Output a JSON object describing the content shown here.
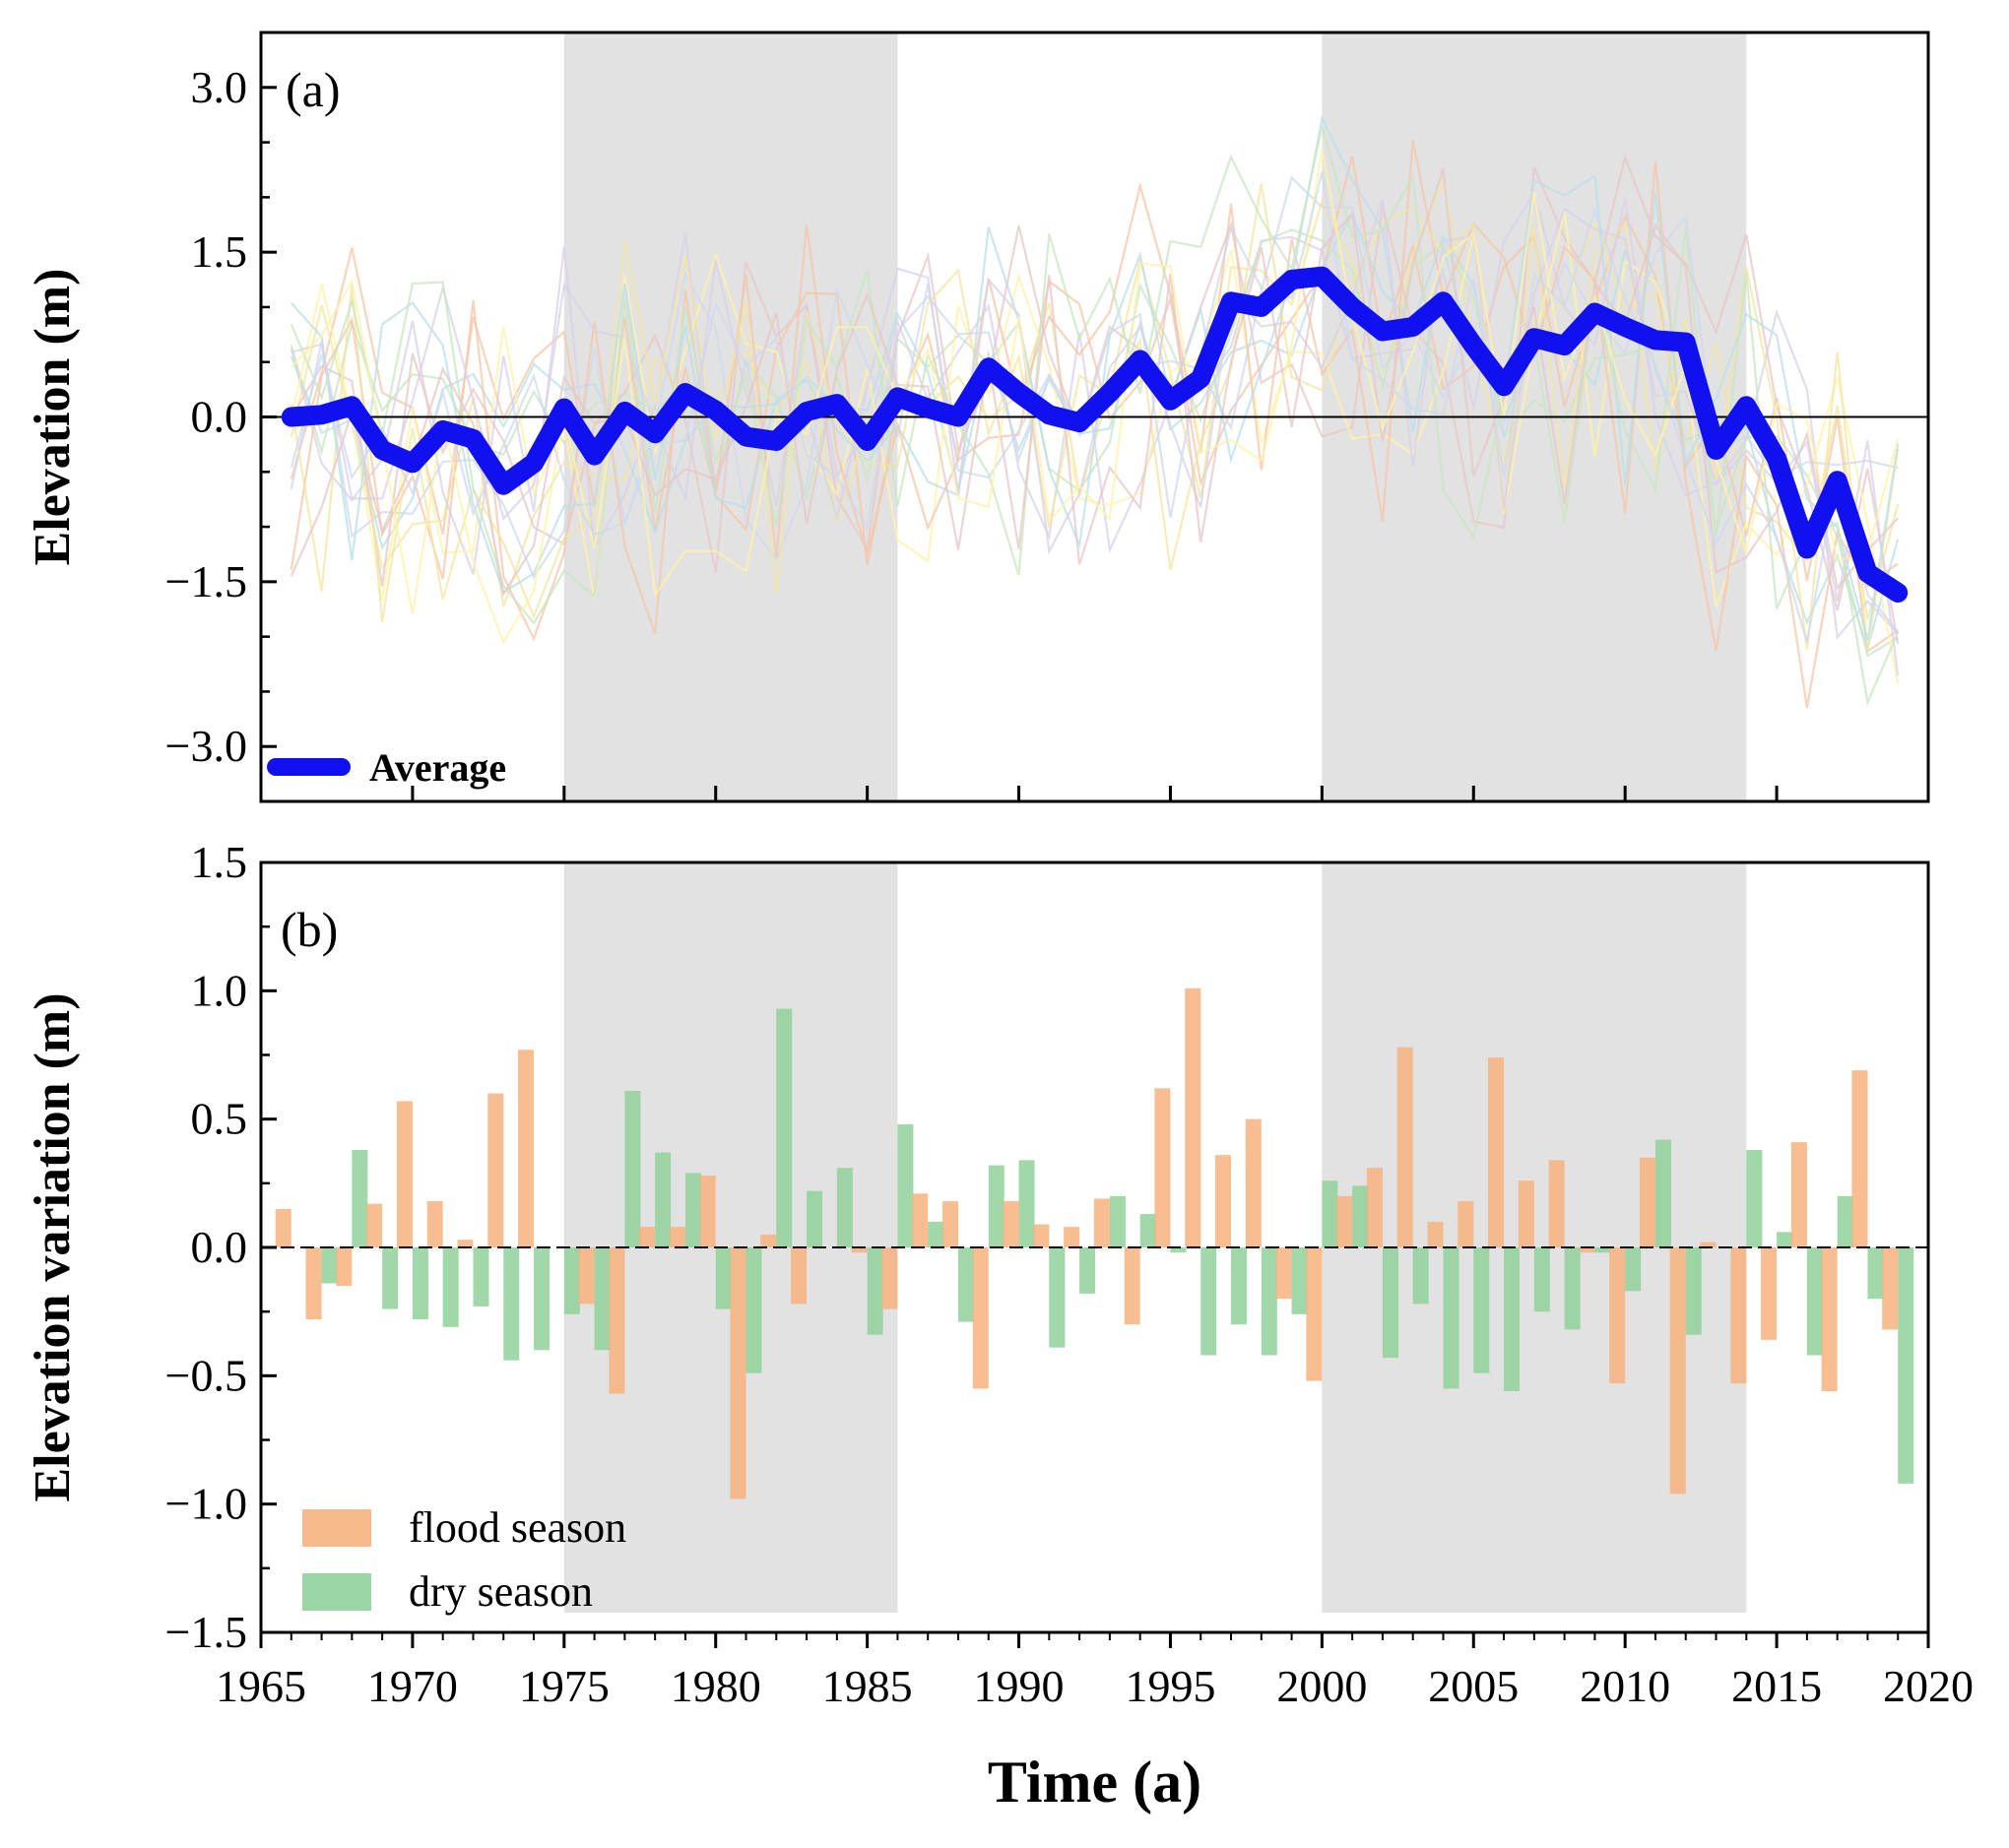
{
  "colors": {
    "average": "#1010f0",
    "flood": "#f7b27e",
    "dry": "#8fd19b",
    "shade": "#e2e2e2",
    "zero": "#000000"
  },
  "chart_data": [
    {
      "id": "a",
      "type": "line",
      "panel_label": "(a)",
      "ylabel": "Elevation (m)",
      "xlim": [
        1965,
        2020
      ],
      "ylim": [
        -3.5,
        3.5
      ],
      "yticks": [
        -3.0,
        -1.5,
        0.0,
        1.5,
        3.0
      ],
      "ytick_labels": [
        "−3.0",
        "−1.5",
        "0.0",
        "1.5",
        "3.0"
      ],
      "shaded_periods": [
        [
          1975,
          1986
        ],
        [
          2000,
          2014
        ]
      ],
      "legend": "Average",
      "series": [
        {
          "name": "Average",
          "x": [
            1966,
            1967,
            1968,
            1969,
            1970,
            1971,
            1972,
            1973,
            1974,
            1975,
            1976,
            1977,
            1978,
            1979,
            1980,
            1981,
            1982,
            1983,
            1984,
            1985,
            1986,
            1987,
            1988,
            1989,
            1990,
            1991,
            1992,
            1993,
            1994,
            1995,
            1996,
            1997,
            1998,
            1999,
            2000,
            2001,
            2002,
            2003,
            2004,
            2005,
            2006,
            2007,
            2008,
            2009,
            2010,
            2011,
            2012,
            2013,
            2014,
            2015,
            2016,
            2017,
            2018,
            2019
          ],
          "values": [
            0.0,
            0.02,
            0.1,
            -0.3,
            -0.42,
            -0.12,
            -0.2,
            -0.62,
            -0.42,
            0.08,
            -0.35,
            0.05,
            -0.15,
            0.22,
            0.06,
            -0.18,
            -0.22,
            0.05,
            0.12,
            -0.22,
            0.18,
            0.08,
            0.0,
            0.45,
            0.22,
            0.02,
            -0.05,
            0.22,
            0.52,
            0.15,
            0.35,
            1.05,
            1.0,
            1.25,
            1.28,
            1.0,
            0.78,
            0.82,
            1.05,
            0.65,
            0.28,
            0.72,
            0.65,
            0.95,
            0.82,
            0.7,
            0.68,
            -0.3,
            0.1,
            -0.38,
            -1.2,
            -0.58,
            -1.42,
            -1.6
          ]
        }
      ],
      "background_series_count": 16
    },
    {
      "id": "b",
      "type": "bar",
      "panel_label": "(b)",
      "ylabel": "Elevation variation (m)",
      "xlabel": "Time (a)",
      "xlim": [
        1965,
        2020
      ],
      "ylim": [
        -1.5,
        1.5
      ],
      "yticks": [
        -1.5,
        -1.0,
        -0.5,
        0.0,
        0.5,
        1.0,
        1.5
      ],
      "ytick_labels": [
        "−1.5",
        "−1.0",
        "−0.5",
        "0.0",
        "0.5",
        "1.0",
        "1.5"
      ],
      "xticks": [
        1965,
        1970,
        1975,
        1980,
        1985,
        1990,
        1995,
        2000,
        2005,
        2010,
        2015,
        2020
      ],
      "xtick_labels": [
        "1965",
        "1970",
        "1975",
        "1980",
        "1985",
        "1990",
        "1995",
        "2000",
        "2005",
        "2010",
        "2015",
        "2020"
      ],
      "shaded_periods": [
        [
          1975,
          1986
        ],
        [
          2000,
          2014
        ]
      ],
      "categories": [
        1966,
        1967,
        1968,
        1969,
        1970,
        1971,
        1972,
        1973,
        1974,
        1975,
        1976,
        1977,
        1978,
        1979,
        1980,
        1981,
        1982,
        1983,
        1984,
        1985,
        1986,
        1987,
        1988,
        1989,
        1990,
        1991,
        1992,
        1993,
        1994,
        1995,
        1996,
        1997,
        1998,
        1999,
        2000,
        2001,
        2002,
        2003,
        2004,
        2005,
        2006,
        2007,
        2008,
        2009,
        2010,
        2011,
        2012,
        2013,
        2014,
        2015,
        2016,
        2017,
        2018,
        2019
      ],
      "series": [
        {
          "name": "flood season",
          "values": [
            0.15,
            -0.28,
            -0.15,
            0.17,
            0.57,
            0.18,
            0.03,
            0.6,
            0.77,
            0.0,
            -0.22,
            -0.57,
            0.08,
            0.08,
            0.28,
            -0.98,
            0.05,
            -0.22,
            0.0,
            -0.02,
            -0.24,
            0.21,
            0.18,
            -0.55,
            0.18,
            0.09,
            0.08,
            0.19,
            -0.3,
            0.62,
            1.01,
            0.36,
            0.5,
            -0.2,
            -0.52,
            0.2,
            0.31,
            0.78,
            0.1,
            0.18,
            0.74,
            0.26,
            0.34,
            -0.02,
            -0.53,
            0.35,
            -0.96,
            0.02,
            -0.53,
            -0.36,
            0.41,
            -0.56,
            0.69,
            -0.32
          ]
        },
        {
          "name": "dry season",
          "values": [
            0.0,
            -0.14,
            0.38,
            -0.24,
            -0.28,
            -0.31,
            -0.23,
            -0.44,
            -0.4,
            -0.26,
            -0.4,
            0.61,
            0.37,
            0.29,
            -0.24,
            -0.49,
            0.93,
            0.22,
            0.31,
            -0.34,
            0.48,
            0.1,
            -0.29,
            0.32,
            0.34,
            -0.39,
            -0.18,
            0.2,
            0.13,
            -0.02,
            -0.42,
            -0.3,
            -0.42,
            -0.26,
            0.26,
            0.24,
            -0.43,
            -0.22,
            -0.55,
            -0.49,
            -0.56,
            -0.25,
            -0.32,
            -0.02,
            -0.17,
            0.42,
            -0.34,
            0.0,
            0.38,
            0.06,
            -0.42,
            0.2,
            -0.2,
            -0.92
          ]
        }
      ]
    }
  ]
}
